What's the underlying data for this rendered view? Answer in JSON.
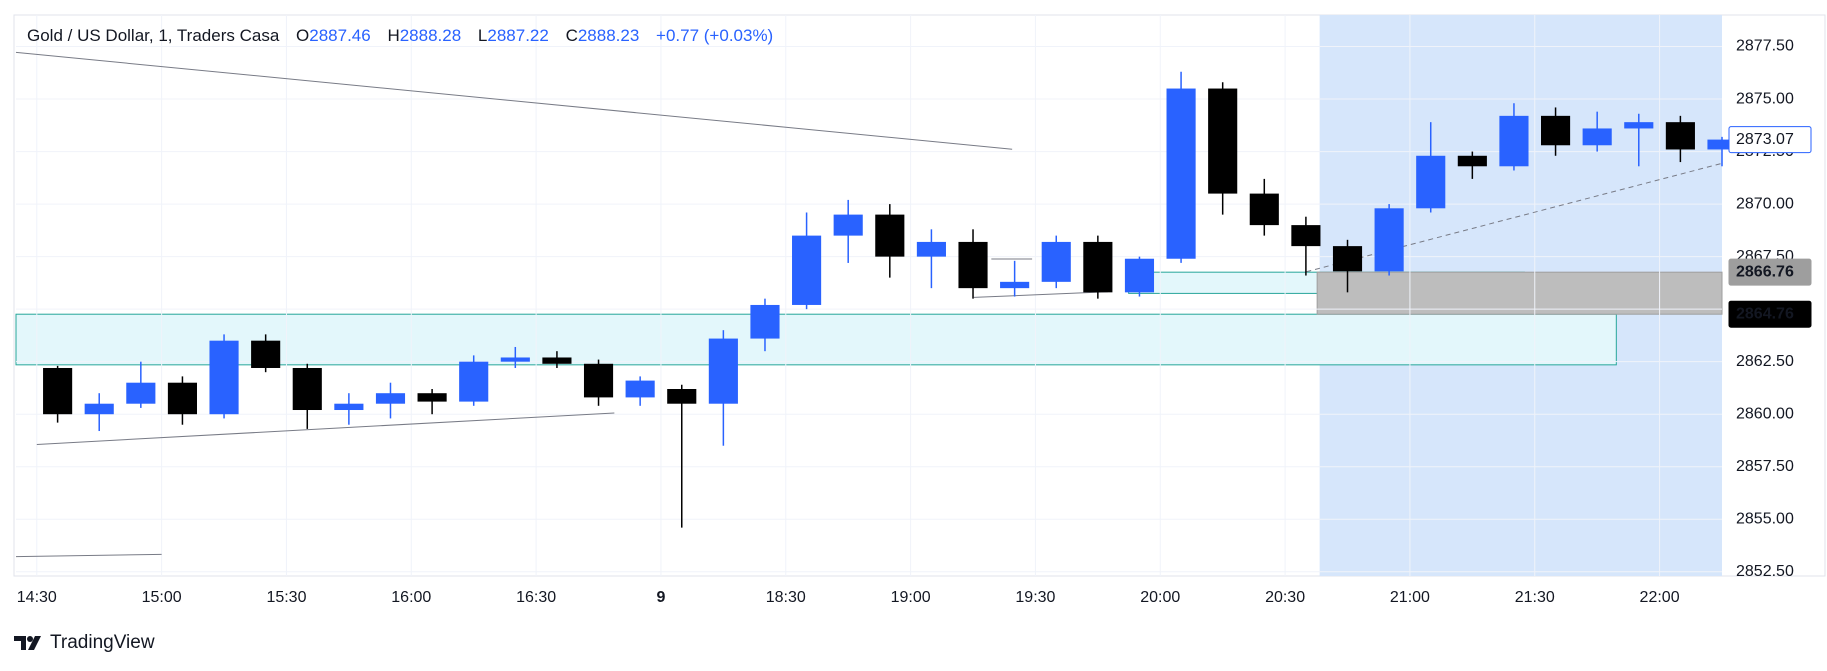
{
  "chart_data": {
    "type": "candlestick",
    "title": "Gold / US Dollar, 1, Traders Casa",
    "legend": {
      "open_label": "O",
      "open": 2887.46,
      "high_label": "H",
      "high": 2888.28,
      "low_label": "L",
      "low": 2887.22,
      "close_label": "C",
      "close": 2888.23,
      "change": "+0.77 (+0.03%)"
    },
    "x": [
      0,
      10,
      20,
      30,
      40,
      50,
      60,
      70,
      80,
      90,
      100,
      110,
      120,
      130,
      140,
      150,
      160,
      170,
      180,
      190,
      200,
      210,
      220,
      230,
      240,
      250,
      260,
      270,
      280,
      290,
      300,
      310,
      320,
      330,
      340,
      350,
      360,
      370,
      380,
      390,
      400
    ],
    "open": [
      2862.2,
      2860,
      2860.5,
      2861.5,
      2860,
      2863.5,
      2862.2,
      2860.2,
      2860.5,
      2861,
      2860.6,
      2862.5,
      2862.7,
      2862.4,
      2860.8,
      2861.2,
      2860.5,
      2863.6,
      2865.2,
      2868.5,
      2869.5,
      2867.5,
      2868.2,
      2866,
      2866.3,
      2868.2,
      2865.8,
      2867.4,
      2875.5,
      2870.5,
      2869,
      2868,
      2866.8,
      2869.8,
      2872.3,
      2871.8,
      2874.2,
      2872.8,
      2873.6,
      2873.9,
      2872.6
    ],
    "high": [
      2862.3,
      2861,
      2862.5,
      2861.8,
      2863.8,
      2863.8,
      2862.4,
      2861,
      2861.5,
      2861.2,
      2862.8,
      2863.2,
      2863,
      2862.6,
      2861.8,
      2861.4,
      2864,
      2865.5,
      2869.6,
      2870.2,
      2870,
      2868.8,
      2868.8,
      2867.3,
      2868.5,
      2868.5,
      2867.5,
      2876.3,
      2875.8,
      2871.2,
      2869.4,
      2868.3,
      2870,
      2873.9,
      2872.5,
      2874.8,
      2874.6,
      2874.4,
      2874.3,
      2874.2,
      2873.2
    ],
    "low": [
      2859.6,
      2859.2,
      2860.3,
      2859.5,
      2859.8,
      2862,
      2859.3,
      2859.5,
      2859.8,
      2860,
      2860.4,
      2862.2,
      2862.2,
      2860.4,
      2860.4,
      2854.6,
      2858.5,
      2863,
      2865,
      2867.2,
      2866.5,
      2866,
      2865.5,
      2865.6,
      2866,
      2865.5,
      2865.6,
      2867.2,
      2869.5,
      2868.5,
      2866.6,
      2865.8,
      2866.6,
      2869.6,
      2871.2,
      2871.6,
      2872.3,
      2872.5,
      2871.8,
      2872,
      2871.8
    ],
    "close": [
      2860,
      2860.5,
      2861.5,
      2860,
      2863.5,
      2862.2,
      2860.2,
      2860.5,
      2861,
      2860.6,
      2862.5,
      2862.7,
      2862.4,
      2860.8,
      2861.6,
      2860.5,
      2863.6,
      2865.2,
      2868.5,
      2869.5,
      2867.5,
      2868.2,
      2866,
      2866.3,
      2868.2,
      2865.8,
      2867.4,
      2875.5,
      2870.5,
      2869,
      2868,
      2866.8,
      2869.8,
      2872.3,
      2871.8,
      2874.2,
      2872.8,
      2873.6,
      2873.9,
      2872.6,
      2873.07
    ],
    "bar_minutes": 10,
    "up_color": "#2962ff",
    "down_color": "#000000",
    "xlim": [
      -5,
      405
    ],
    "xticks": [
      {
        "value": 0,
        "label": "14:30"
      },
      {
        "value": 30,
        "label": "15:00"
      },
      {
        "value": 60,
        "label": "15:30"
      },
      {
        "value": 90,
        "label": "16:00"
      },
      {
        "value": 120,
        "label": "16:30"
      },
      {
        "value": 150,
        "label": "9"
      },
      {
        "value": 180,
        "label": "18:30"
      },
      {
        "value": 210,
        "label": "19:00"
      },
      {
        "value": 240,
        "label": "19:30"
      },
      {
        "value": 270,
        "label": "20:00"
      },
      {
        "value": 300,
        "label": "20:30"
      },
      {
        "value": 330,
        "label": "21:00"
      },
      {
        "value": 360,
        "label": "21:30"
      },
      {
        "value": 390,
        "label": "22:00"
      }
    ],
    "ylim": [
      2852.3,
      2879.0
    ],
    "yticks": [
      {
        "value": 2852.5,
        "label": "2852.50"
      },
      {
        "value": 2855,
        "label": "2855.00"
      },
      {
        "value": 2857.5,
        "label": "2857.50"
      },
      {
        "value": 2860,
        "label": "2860.00"
      },
      {
        "value": 2862.5,
        "label": "2862.50"
      },
      {
        "value": 2865,
        "label": "2865.00"
      },
      {
        "value": 2867.5,
        "label": "2867.50"
      },
      {
        "value": 2870,
        "label": "2870.00"
      },
      {
        "value": 2872.5,
        "label": "2872.50"
      },
      {
        "value": 2875,
        "label": "2875.00"
      },
      {
        "value": 2877.5,
        "label": "2877.50"
      }
    ],
    "grid": true,
    "price_tags": [
      {
        "value": 2873.07,
        "style": "last"
      },
      {
        "value": 2866.76,
        "style": "grey"
      },
      {
        "value": 2864.76,
        "style": "black"
      }
    ],
    "zones": [
      {
        "x": [
          308.3,
          405
        ],
        "y": [
          2852.3,
          2879.0
        ],
        "color": "#d6e6fb"
      },
      {
        "x": [
          -5,
          379.6
        ],
        "y": [
          2862.35,
          2864.76
        ],
        "color": "#e3f7fb"
      },
      {
        "x": [
          262.4,
          357.5
        ],
        "y": [
          2865.75,
          2866.76
        ],
        "color": "#e3f7fb"
      },
      {
        "x": [
          307.7,
          405
        ],
        "y": [
          2864.76,
          2866.76
        ],
        "color": "#bdbdbd"
      }
    ],
    "lines": [
      {
        "x": [
          -5,
          234.4
        ],
        "y": [
          2877.22,
          2872.61
        ],
        "dashed": false
      },
      {
        "x": [
          0,
          138.8
        ],
        "y": [
          2858.56,
          2860.06
        ],
        "dashed": false
      },
      {
        "x": [
          -5,
          30
        ],
        "y": [
          2853.22,
          2853.33
        ],
        "dashed": false
      },
      {
        "x": [
          225.2,
          257.4
        ],
        "y": [
          2865.56,
          2865.83
        ],
        "dashed": false
      },
      {
        "x": [
          229.4,
          239.2
        ],
        "y": [
          2867.39,
          2867.39
        ],
        "dashed": false
      },
      {
        "x": [
          305.1,
          405
        ],
        "y": [
          2866.78,
          2871.94
        ],
        "dashed": true
      }
    ]
  },
  "footer": {
    "brand": "TradingView"
  }
}
